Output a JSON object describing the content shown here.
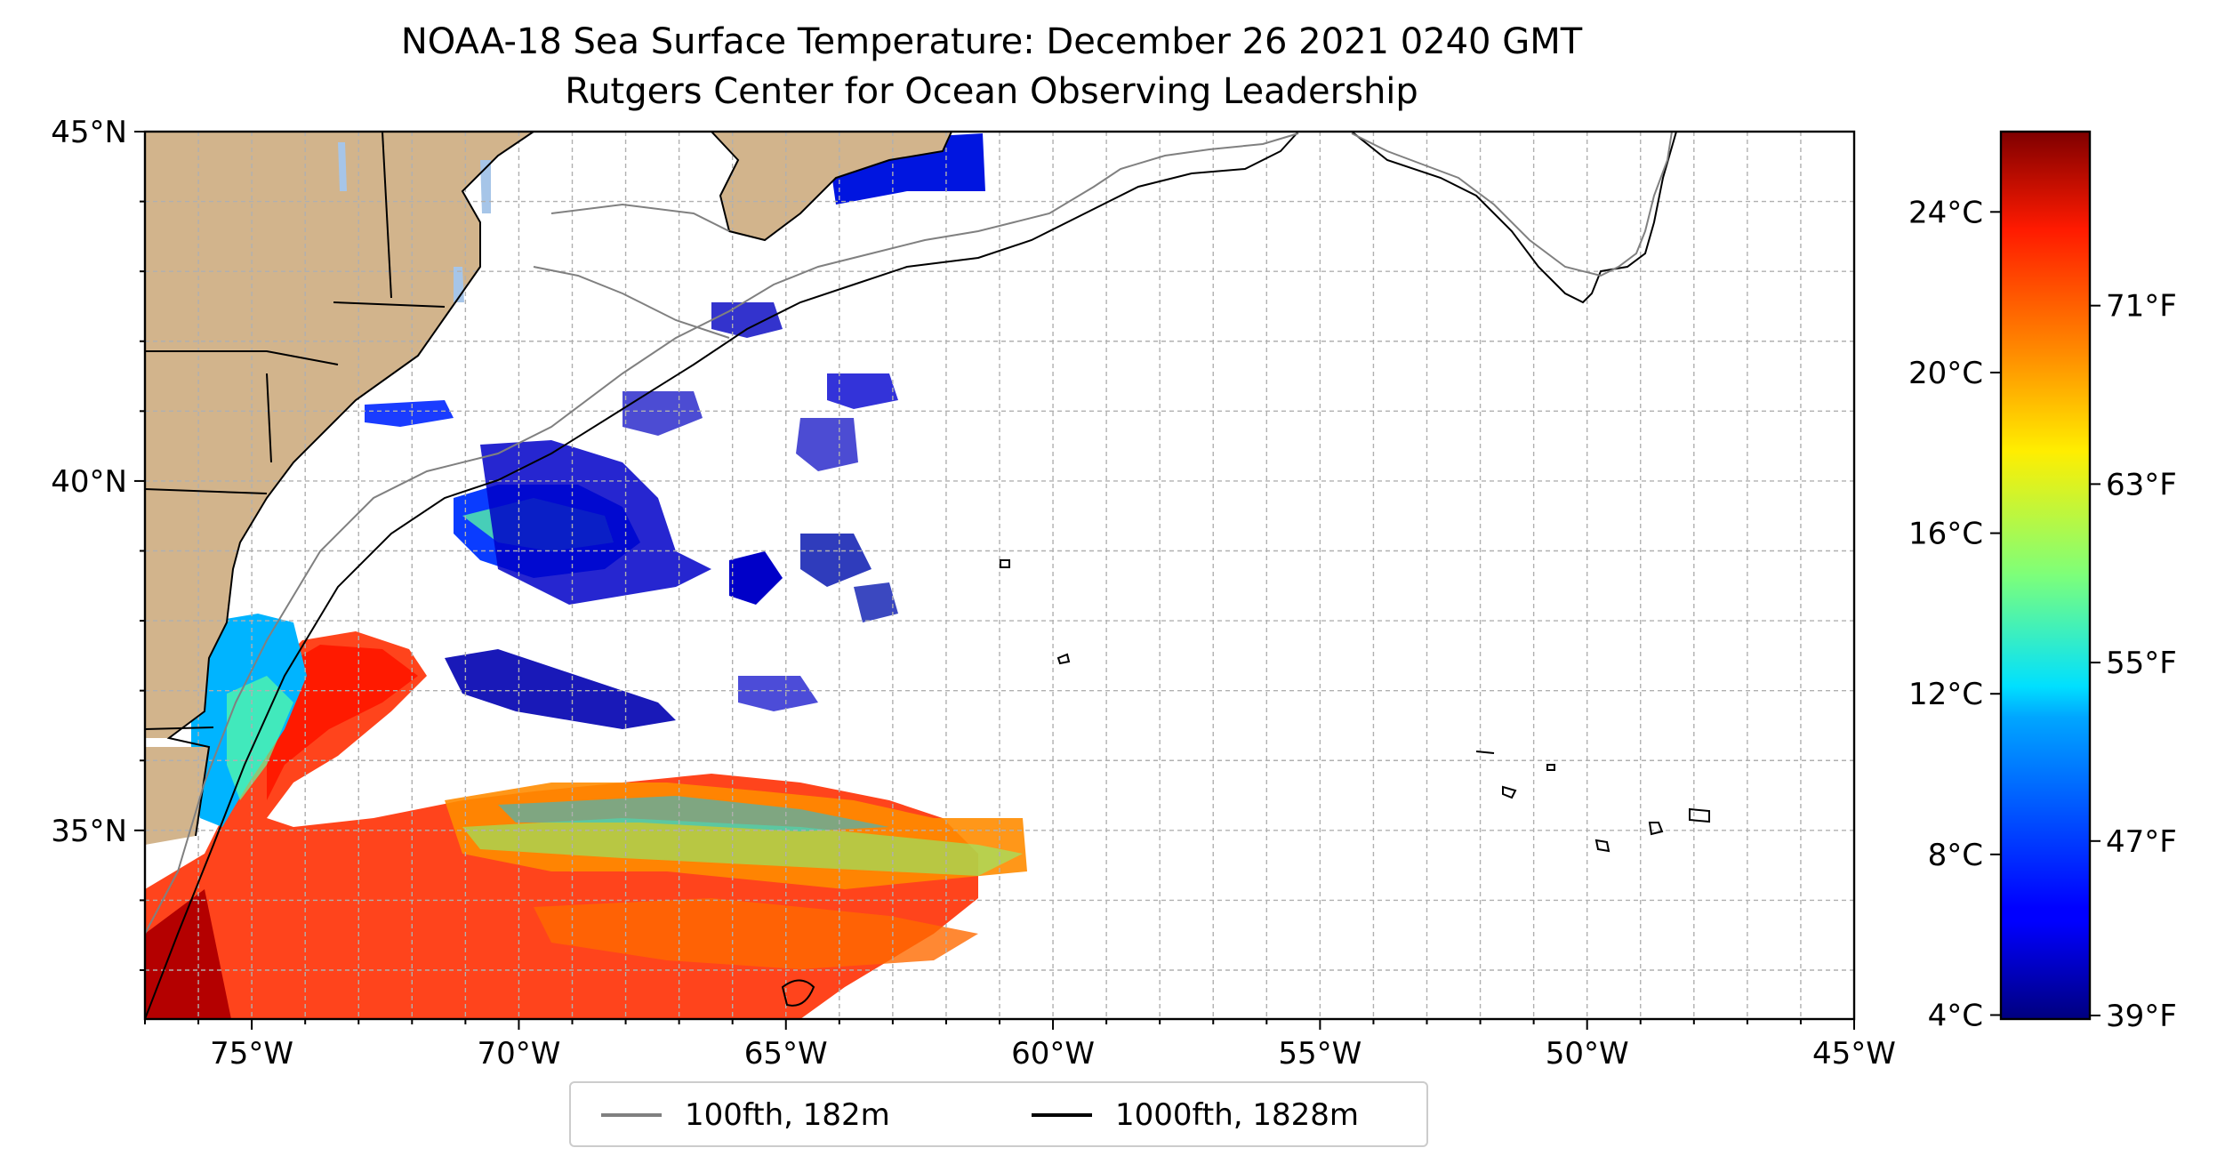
{
  "title": {
    "line1": "NOAA-18 Sea Surface Temperature: December 26 2021 0240 GMT",
    "line2": "Rutgers Center for Ocean Observing Leadership"
  },
  "map": {
    "lon_range": [
      -77,
      -45
    ],
    "lat_range": [
      32.3,
      45
    ],
    "land_color": "#d2b48c",
    "lake_color": "#a6c5e8",
    "grid": "dashed gray, every 1 degree",
    "x_ticks": [
      "75°W",
      "70°W",
      "65°W",
      "60°W",
      "55°W",
      "50°W",
      "45°W"
    ],
    "y_ticks": [
      "35°N",
      "40°N",
      "45°N"
    ]
  },
  "colorbar": {
    "colormap": "jet",
    "range_celsius": [
      3.9,
      26
    ],
    "celsius_ticks": [
      "4°C",
      "8°C",
      "12°C",
      "16°C",
      "20°C",
      "24°C"
    ],
    "fahrenheit_ticks": [
      "39°F",
      "47°F",
      "55°F",
      "63°F",
      "71°F"
    ]
  },
  "legend": {
    "items": [
      {
        "label": "100fth, 182m",
        "color": "#808080"
      },
      {
        "label": "1000fth, 1828m",
        "color": "#000000"
      }
    ]
  }
}
